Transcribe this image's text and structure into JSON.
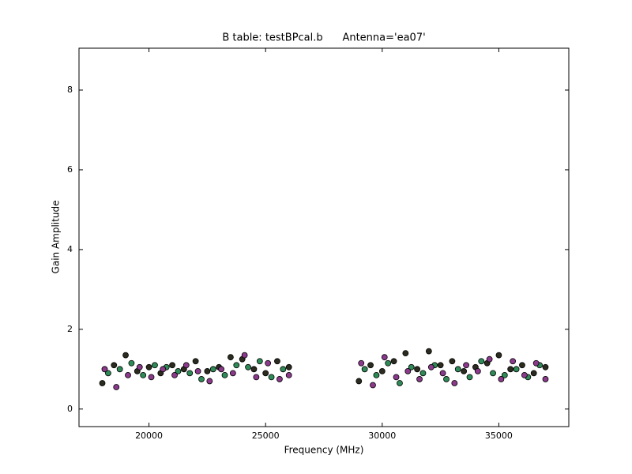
{
  "chart_data": {
    "type": "scatter",
    "title": "B table: testBPcal.b      Antenna='ea07'",
    "xlabel": "Frequency (MHz)",
    "ylabel": "Gain Amplitude",
    "xlim": [
      17000,
      38000
    ],
    "ylim": [
      -0.44,
      9.05
    ],
    "xticks": [
      20000,
      25000,
      30000,
      35000
    ],
    "yticks": [
      0,
      2,
      4,
      6,
      8
    ],
    "grid": false,
    "series": [
      {
        "color": "#2b2b1f",
        "x": [
          18000,
          18500,
          19000,
          19500,
          20000,
          20500,
          21000,
          21500,
          22000,
          22500,
          23000,
          23500,
          24000,
          24500,
          25000,
          25500,
          26000,
          29000,
          29500,
          30000,
          30500,
          31000,
          31500,
          32000,
          32500,
          33000,
          33500,
          34000,
          34500,
          35000,
          35500,
          36000,
          36500,
          37000
        ],
        "values": [
          0.65,
          1.1,
          1.35,
          0.95,
          1.05,
          0.9,
          1.1,
          1.0,
          1.2,
          0.95,
          1.05,
          1.3,
          1.25,
          1.0,
          0.9,
          1.2,
          1.05,
          0.7,
          1.1,
          0.95,
          1.2,
          1.4,
          1.0,
          1.45,
          1.1,
          1.2,
          0.95,
          1.05,
          1.15,
          1.35,
          1.0,
          1.1,
          0.9,
          1.05
        ]
      },
      {
        "color": "#2e8b57",
        "x": [
          18250,
          18750,
          19250,
          19750,
          20250,
          20750,
          21250,
          21750,
          22250,
          22750,
          23250,
          23750,
          24250,
          24750,
          25250,
          25750,
          29250,
          29750,
          30250,
          30750,
          31250,
          31750,
          32250,
          32750,
          33250,
          33750,
          34250,
          34750,
          35250,
          35750,
          36250,
          36750
        ],
        "values": [
          0.9,
          1.0,
          1.15,
          0.85,
          1.1,
          1.05,
          0.95,
          0.9,
          0.75,
          1.0,
          0.85,
          1.1,
          1.05,
          1.2,
          0.8,
          1.0,
          1.0,
          0.85,
          1.15,
          0.65,
          1.05,
          0.9,
          1.1,
          0.75,
          1.0,
          0.8,
          1.2,
          0.9,
          0.85,
          1.0,
          0.8,
          1.1
        ]
      },
      {
        "color": "#8b3a8b",
        "x": [
          18100,
          18600,
          19100,
          19600,
          20100,
          20600,
          21100,
          21600,
          22100,
          22600,
          23100,
          23600,
          24100,
          24600,
          25100,
          25600,
          26000,
          29100,
          29600,
          30100,
          30600,
          31100,
          31600,
          32100,
          32600,
          33100,
          33600,
          34100,
          34600,
          35100,
          35600,
          36100,
          36600,
          37000
        ],
        "values": [
          1.0,
          0.55,
          0.85,
          1.05,
          0.8,
          1.0,
          0.85,
          1.1,
          0.95,
          0.7,
          1.0,
          0.9,
          1.35,
          0.8,
          1.15,
          0.75,
          0.85,
          1.15,
          0.6,
          1.3,
          0.8,
          0.95,
          0.75,
          1.05,
          0.9,
          0.65,
          1.1,
          0.95,
          1.25,
          0.75,
          1.2,
          0.85,
          1.15,
          0.75
        ]
      }
    ]
  }
}
